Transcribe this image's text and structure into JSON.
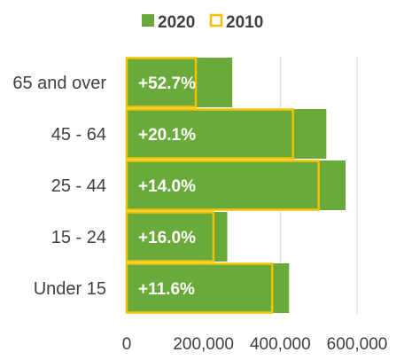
{
  "chart_data": {
    "type": "bar",
    "orientation": "horizontal",
    "title": "",
    "xlabel": "",
    "ylabel": "",
    "categories": [
      "65 and over",
      "45 - 64",
      "25 - 44",
      "15 - 24",
      "Under 15"
    ],
    "series": [
      {
        "name": "2020",
        "values": [
          275000,
          520000,
          570000,
          262000,
          423000
        ],
        "color": "#6aaa3a",
        "style": "filled"
      },
      {
        "name": "2010",
        "values": [
          180000,
          433000,
          500000,
          226000,
          379000
        ],
        "color": "#f2c200",
        "style": "outline"
      }
    ],
    "data_labels": [
      "+52.7%",
      "+20.1%",
      "+14.0%",
      "+16.0%",
      "+11.6%"
    ],
    "xlim": [
      0,
      600000
    ],
    "x_ticks": [
      0,
      200000,
      400000,
      600000
    ],
    "x_tick_labels": [
      "0",
      "200,000",
      "400,000",
      "600,000"
    ],
    "grid": "vertical",
    "legend": "top-center"
  }
}
